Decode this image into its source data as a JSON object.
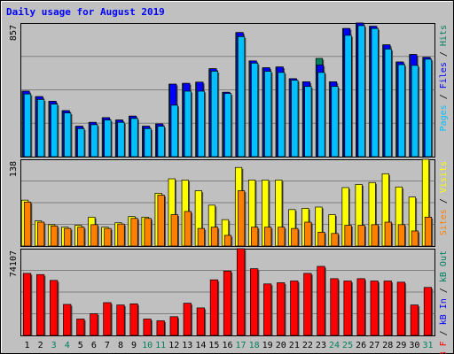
{
  "chart_data": {
    "type": "bar",
    "title": "Daily usage for August 2019",
    "days": [
      "1",
      "2",
      "3",
      "4",
      "5",
      "6",
      "7",
      "8",
      "9",
      "10",
      "11",
      "12",
      "13",
      "14",
      "15",
      "16",
      "17",
      "18",
      "19",
      "20",
      "21",
      "22",
      "23",
      "24",
      "25",
      "26",
      "27",
      "28",
      "29",
      "30",
      "31"
    ],
    "weekend_days": [
      "3",
      "4",
      "10",
      "11",
      "17",
      "18",
      "24",
      "25",
      "31"
    ],
    "colors": {
      "title": "#0000ff",
      "weekday": "#000000",
      "weekend": "#00805c",
      "hits": "#00805c",
      "files": "#0000ff",
      "pages": "#00c0ff",
      "visits": "#ffff00",
      "sites": "#ff8000",
      "kbin": "#0000ff",
      "kbout": "#00805c",
      "kbf": "#ff0000"
    },
    "panels": [
      {
        "id": "hits",
        "max_label": "857",
        "ymax": 857,
        "legend": [
          {
            "key": "pages",
            "label": "Pages"
          },
          {
            "key": "sep",
            "label": " / "
          },
          {
            "key": "files",
            "label": "Files"
          },
          {
            "key": "sep",
            "label": " / "
          },
          {
            "key": "hits",
            "label": "Hits"
          }
        ],
        "series": [
          {
            "name": "Hits",
            "color": "#00805c",
            "values": [
              420,
              385,
              355,
              295,
              195,
              220,
              250,
              235,
              260,
              195,
              210,
              465,
              470,
              478,
              564,
              413,
              796,
              614,
              570,
              575,
              500,
              480,
              630,
              480,
              822,
              857,
              836,
              717,
              607,
              655,
              637
            ]
          },
          {
            "name": "Files",
            "color": "#0000ff",
            "values": [
              420,
              385,
              355,
              295,
              195,
              220,
              250,
              235,
              260,
              195,
              210,
              465,
              470,
              478,
              564,
              413,
              796,
              614,
              570,
              575,
              500,
              480,
              588,
              480,
              822,
              857,
              836,
              717,
              607,
              655,
              637
            ]
          },
          {
            "name": "Pages",
            "color": "#00c0ff",
            "values": [
              402,
              367,
              337,
              280,
              180,
              205,
              235,
              220,
              245,
              180,
              195,
              330,
              420,
              420,
              548,
              405,
              770,
              600,
              547,
              540,
              490,
              450,
              540,
              450,
              778,
              840,
              822,
              690,
              590,
              585,
              625
            ]
          }
        ]
      },
      {
        "id": "visits",
        "max_label": "138",
        "ymax": 138,
        "legend": [
          {
            "key": "sites",
            "label": "Sites"
          },
          {
            "key": "sep",
            "label": " / "
          },
          {
            "key": "visits",
            "label": "Visits"
          }
        ],
        "series": [
          {
            "name": "Visits",
            "color": "#ffff00",
            "values": [
              73,
              40,
              34,
              30,
              33,
              46,
              30,
              37,
              47,
              46,
              84,
              107,
              105,
              88,
              65,
              42,
              125,
              105,
              105,
              105,
              58,
              60,
              62,
              50,
              93,
              98,
              101,
              115,
              94,
              78,
              138
            ]
          },
          {
            "name": "Sites",
            "color": "#ff8000",
            "values": [
              70,
              38,
              32,
              28,
              30,
              34,
              28,
              35,
              44,
              44,
              81,
              50,
              55,
              28,
              30,
              17,
              88,
              30,
              30,
              30,
              28,
              38,
              22,
              20,
              33,
              33,
              34,
              38,
              34,
              24,
              46
            ]
          }
        ]
      },
      {
        "id": "kbytes",
        "max_label": "74107",
        "ymax": 74107,
        "legend": [
          {
            "key": "kbf",
            "label": "kB F"
          },
          {
            "key": "sep",
            "label": " / "
          },
          {
            "key": "kbin",
            "label": "kB In"
          },
          {
            "key": "sep",
            "label": " / "
          },
          {
            "key": "kbout",
            "label": "kB Out"
          }
        ],
        "series": [
          {
            "name": "kB F",
            "color": "#ff0000",
            "values": [
              53000,
              52000,
              47000,
              26500,
              14000,
              18500,
              28000,
              26000,
              27000,
              14000,
              12500,
              16000,
              27500,
              23500,
              47500,
              55000,
              74107,
              57000,
              44000,
              45000,
              46500,
              53000,
              59000,
              48500,
              46500,
              48500,
              46500,
              46500,
              45500,
              26000,
              41000
            ]
          }
        ]
      }
    ]
  }
}
